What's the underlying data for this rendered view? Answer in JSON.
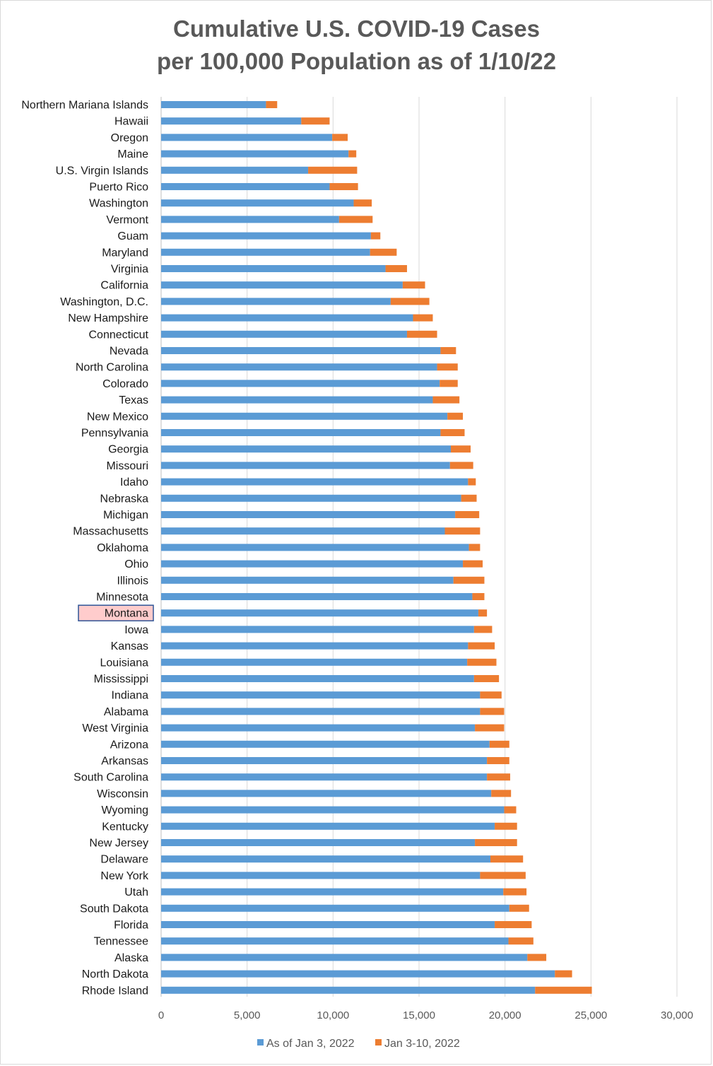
{
  "title_line_1": "Cumulative U.S. COVID-19 Cases",
  "title_line_2": "per 100,000 Population as of 1/10/22",
  "colors": {
    "base": "#5b9bd5",
    "increment": "#ed7d31",
    "gridline": "#d9d9d9",
    "highlight_fill": "#ffcccc",
    "highlight_border": "#2f5597"
  },
  "chart_data": {
    "type": "bar",
    "orientation": "horizontal",
    "stacked": true,
    "xlim": [
      0,
      30000
    ],
    "x_ticks": [
      "0",
      "5,000",
      "10,000",
      "15,000",
      "20,000",
      "25,000",
      "30,000"
    ],
    "grid": true,
    "legend_position": "bottom",
    "highlighted_category": "Montana",
    "categories": [
      "Northern Mariana Islands",
      "Hawaii",
      "Oregon",
      "Maine",
      "U.S. Virgin Islands",
      "Puerto Rico",
      "Washington",
      "Vermont",
      "Guam",
      "Maryland",
      "Virginia",
      "California",
      "Washington, D.C.",
      "New Hampshire",
      "Connecticut",
      "Nevada",
      "North Carolina",
      "Colorado",
      "Texas",
      "New Mexico",
      "Pennsylvania",
      "Georgia",
      "Missouri",
      "Idaho",
      "Nebraska",
      "Michigan",
      "Massachusetts",
      "Oklahoma",
      "Ohio",
      "Illinois",
      "Minnesota",
      "Montana",
      "Iowa",
      "Kansas",
      "Louisiana",
      "Mississippi",
      "Indiana",
      "Alabama",
      "West Virginia",
      "Arizona",
      "Arkansas",
      "South Carolina",
      "Wisconsin",
      "Wyoming",
      "Kentucky",
      "New Jersey",
      "Delaware",
      "New York",
      "Utah",
      "South Dakota",
      "Florida",
      "Tennessee",
      "Alaska",
      "North Dakota",
      "Rhode Island"
    ],
    "series": [
      {
        "name": "As of Jan 3, 2022",
        "values": [
          6100,
          8150,
          9950,
          10900,
          8550,
          9800,
          11200,
          10350,
          12200,
          12150,
          13050,
          14050,
          13350,
          14650,
          14300,
          16250,
          16050,
          16200,
          15800,
          16650,
          16250,
          16850,
          16800,
          17850,
          17450,
          17100,
          16500,
          17900,
          17550,
          17000,
          18100,
          18450,
          18200,
          17850,
          17800,
          18200,
          18550,
          18550,
          18250,
          19100,
          18950,
          18950,
          19200,
          19950,
          19400,
          18250,
          19150,
          18550,
          19900,
          20250,
          19400,
          20200,
          21300,
          22900,
          21750
        ]
      },
      {
        "name": "Jan 3-10, 2022",
        "values": [
          650,
          1650,
          900,
          450,
          2850,
          1650,
          1050,
          1950,
          550,
          1550,
          1250,
          1300,
          2250,
          1150,
          1750,
          900,
          1200,
          1050,
          1550,
          900,
          1400,
          1150,
          1350,
          450,
          900,
          1400,
          2050,
          650,
          1150,
          1800,
          700,
          500,
          1050,
          1550,
          1700,
          1450,
          1250,
          1400,
          1700,
          1150,
          1300,
          1350,
          1150,
          700,
          1300,
          2450,
          1900,
          2650,
          1350,
          1150,
          2150,
          1450,
          1100,
          1000,
          3300
        ]
      }
    ]
  }
}
